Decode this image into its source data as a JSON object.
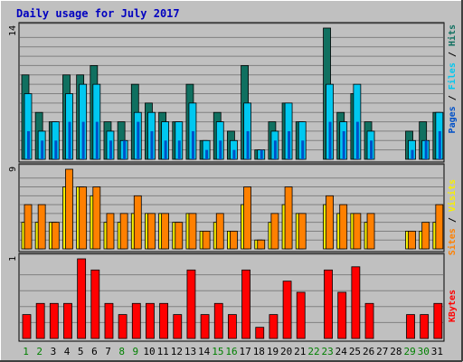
{
  "title": "Daily usage for July 2017",
  "colors": {
    "title": "#0000C0",
    "hits": "#107060",
    "files": "#00C8F0",
    "pages": "#0050C8",
    "visits": "#F8F000",
    "sites": "#FF8000",
    "kbytes": "#FF0000",
    "weekend_day": "#008000",
    "weekday": "#000000",
    "panel": "#C0C0C0",
    "grid": "#808080"
  },
  "chart_data": [
    {
      "type": "bar",
      "name": "hits-files-pages",
      "ylabel_max": "14",
      "ylim": [
        0,
        14
      ],
      "categories": [
        "1",
        "2",
        "3",
        "4",
        "5",
        "6",
        "7",
        "8",
        "9",
        "10",
        "11",
        "12",
        "13",
        "14",
        "15",
        "16",
        "17",
        "18",
        "19",
        "20",
        "21",
        "22",
        "23",
        "24",
        "25",
        "26",
        "27",
        "28",
        "29",
        "30",
        "31"
      ],
      "series": [
        {
          "name": "Hits",
          "values": [
            9,
            5,
            4,
            9,
            9,
            10,
            4,
            4,
            8,
            6,
            5,
            4,
            8,
            2,
            5,
            3,
            10,
            1,
            4,
            6,
            4,
            0,
            14,
            5,
            7,
            4,
            0,
            0,
            3,
            4,
            5
          ]
        },
        {
          "name": "Files",
          "values": [
            7,
            3,
            4,
            7,
            8,
            8,
            3,
            2,
            5,
            5,
            4,
            4,
            6,
            2,
            4,
            2,
            6,
            1,
            3,
            6,
            4,
            0,
            8,
            4,
            8,
            3,
            0,
            0,
            2,
            2,
            5
          ]
        },
        {
          "name": "Pages",
          "values": [
            3,
            2,
            2,
            4,
            4,
            4,
            2,
            2,
            4,
            3,
            2,
            2,
            3,
            1,
            2,
            1,
            3,
            1,
            2,
            3,
            2,
            0,
            4,
            3,
            4,
            2,
            0,
            0,
            1,
            2,
            3
          ]
        }
      ]
    },
    {
      "type": "bar",
      "name": "visits-sites",
      "ylabel_max": "9",
      "ylim": [
        0,
        9
      ],
      "categories": [
        "1",
        "2",
        "3",
        "4",
        "5",
        "6",
        "7",
        "8",
        "9",
        "10",
        "11",
        "12",
        "13",
        "14",
        "15",
        "16",
        "17",
        "18",
        "19",
        "20",
        "21",
        "22",
        "23",
        "24",
        "25",
        "26",
        "27",
        "28",
        "29",
        "30",
        "31"
      ],
      "series": [
        {
          "name": "Visits",
          "values": [
            3,
            3,
            3,
            7,
            7,
            6,
            3,
            3,
            4,
            4,
            4,
            3,
            4,
            2,
            3,
            2,
            5,
            1,
            3,
            5,
            4,
            0,
            5,
            4,
            4,
            3,
            0,
            0,
            2,
            2,
            3
          ]
        },
        {
          "name": "Sites",
          "values": [
            5,
            5,
            3,
            9,
            7,
            7,
            4,
            4,
            6,
            4,
            4,
            3,
            4,
            2,
            4,
            2,
            7,
            1,
            4,
            7,
            4,
            0,
            6,
            5,
            4,
            4,
            0,
            0,
            2,
            3,
            5
          ]
        }
      ]
    },
    {
      "type": "bar",
      "name": "kbytes",
      "ylabel_max": "1",
      "ylim": [
        0,
        1
      ],
      "categories": [
        "1",
        "2",
        "3",
        "4",
        "5",
        "6",
        "7",
        "8",
        "9",
        "10",
        "11",
        "12",
        "13",
        "14",
        "15",
        "16",
        "17",
        "18",
        "19",
        "20",
        "21",
        "22",
        "23",
        "24",
        "25",
        "26",
        "27",
        "28",
        "29",
        "30",
        "31"
      ],
      "series": [
        {
          "name": "KBytes",
          "values": [
            0.3,
            0.44,
            0.44,
            0.44,
            1.0,
            0.86,
            0.44,
            0.3,
            0.44,
            0.44,
            0.44,
            0.3,
            0.86,
            0.3,
            0.44,
            0.3,
            0.86,
            0.14,
            0.3,
            0.72,
            0.58,
            0,
            0.86,
            0.58,
            0.9,
            0.44,
            0,
            0,
            0.3,
            0.3,
            0.44
          ]
        }
      ]
    }
  ],
  "legend_top": [
    {
      "text": "Pages",
      "color_key": "pages"
    },
    {
      "text": " / ",
      "color_key": "weekday"
    },
    {
      "text": "Files",
      "color_key": "files"
    },
    {
      "text": " / ",
      "color_key": "weekday"
    },
    {
      "text": "Hits",
      "color_key": "hits"
    }
  ],
  "legend_mid": [
    {
      "text": "Sites",
      "color_key": "sites"
    },
    {
      "text": " / ",
      "color_key": "weekday"
    },
    {
      "text": "Visits",
      "color_key": "visits"
    }
  ],
  "legend_bot": [
    {
      "text": "KBytes",
      "color_key": "kbytes"
    }
  ],
  "weekend_days": [
    "1",
    "2",
    "8",
    "9",
    "15",
    "16",
    "22",
    "23",
    "29",
    "30"
  ]
}
